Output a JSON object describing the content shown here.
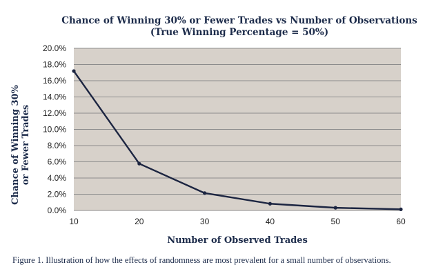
{
  "chart_data": {
    "type": "line",
    "title": "Chance of Winning 30% or Fewer Trades vs Number of Observations",
    "subtitle": "(True Winning Percentage = 50%)",
    "xlabel": "Number of Observed Trades",
    "ylabel": [
      "Chance of Winning 30%",
      "or Fewer Trades"
    ],
    "x": [
      10,
      20,
      30,
      40,
      50,
      60
    ],
    "series": [
      {
        "values": [
          17.19,
          5.77,
          2.14,
          0.83,
          0.33,
          0.14
        ]
      }
    ],
    "xticks": [
      "10",
      "20",
      "30",
      "40",
      "50",
      "60"
    ],
    "yticks": [
      "0.0%",
      "2.0%",
      "4.0%",
      "6.0%",
      "8.0%",
      "10.0%",
      "12.0%",
      "14.0%",
      "16.0%",
      "18.0%",
      "20.0%"
    ],
    "xlim": [
      10,
      60
    ],
    "ylim": [
      0,
      20
    ],
    "grid": true,
    "colors": {
      "line": "#1c2541",
      "plot_bg": "#d7d1ca",
      "grid": "#8c8c8c"
    }
  },
  "caption": "Figure 1.  Illustration of how the effects of randomness are most prevalent for a small number of observations."
}
